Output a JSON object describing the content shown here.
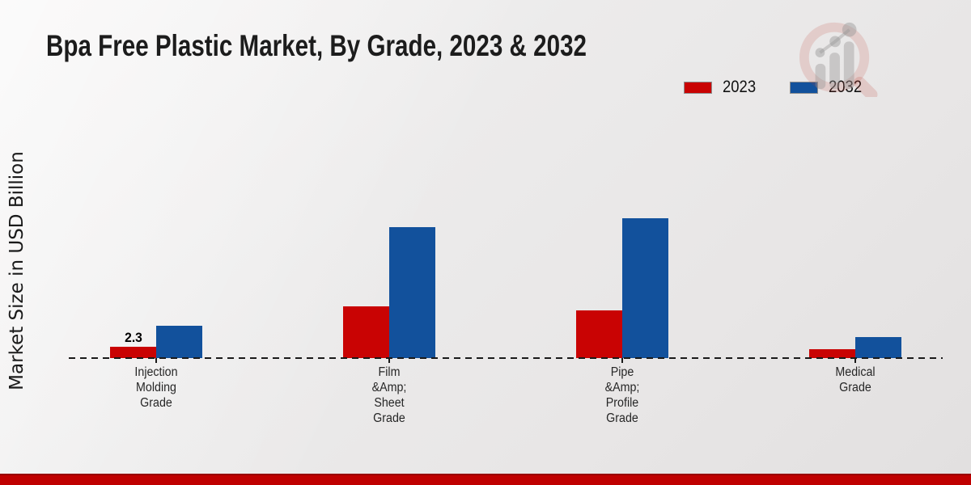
{
  "page": {
    "title": "Bpa Free Plastic Market, By Grade, 2023 & 2032"
  },
  "chart_data": {
    "type": "bar",
    "title": "Bpa Free Plastic Market, By Grade, 2023 & 2032",
    "xlabel": "",
    "ylabel": "Market Size in USD Billion",
    "ylim": [
      0,
      30
    ],
    "grid": false,
    "legend_position": "top-right",
    "baseline_style": "dashed",
    "categories": [
      "Injection Molding Grade",
      "Film &Amp; Sheet Grade",
      "Pipe &Amp; Profile Grade",
      "Medical Grade"
    ],
    "category_label_lines": [
      [
        "Injection",
        "Molding",
        "Grade"
      ],
      [
        "Film",
        "&Amp;",
        "Sheet",
        "Grade"
      ],
      [
        "Pipe",
        "&Amp;",
        "Profile",
        "Grade"
      ],
      [
        "Medical",
        "Grade"
      ]
    ],
    "series": [
      {
        "name": "2023",
        "color": "#c90303",
        "values": [
          2.3,
          10.5,
          9.7,
          1.8
        ]
      },
      {
        "name": "2032",
        "color": "#12519c",
        "values": [
          6.5,
          26.6,
          28.4,
          4.3
        ]
      }
    ],
    "bar_value_label": {
      "series_index": 0,
      "category_index": 0,
      "text": "2.3"
    }
  },
  "branding": {
    "logo_icon": "magnifier-bar-chart-watermark",
    "accent_bar_color": "#bf0000",
    "legend_2023_color": "#c90303",
    "legend_2032_color": "#12519c"
  }
}
